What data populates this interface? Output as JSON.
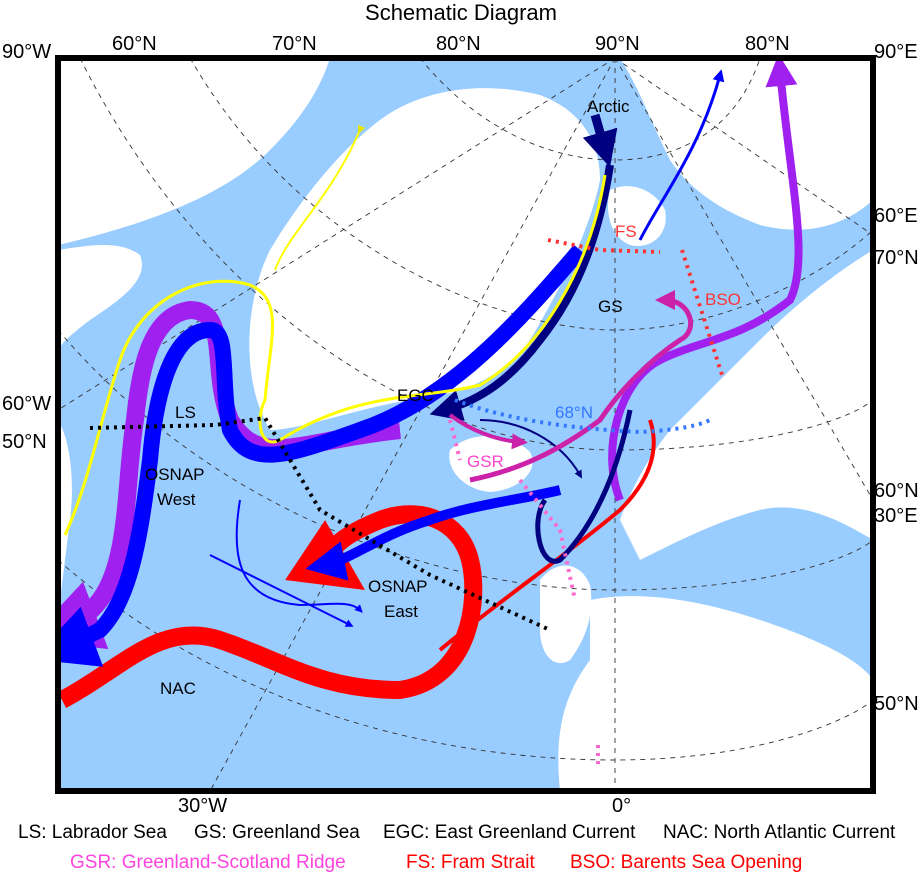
{
  "title": "Schematic Diagram",
  "colors": {
    "ocean": "#99ccff",
    "land": "#ffffff",
    "red": "#ff0000",
    "purple": "#a020f0",
    "blue": "#0000ff",
    "navy": "#000080",
    "yellow": "#ffff00",
    "magenta": "#cc22aa",
    "pink": "#ff66cc",
    "dotted_blue": "#3377ff"
  },
  "coord_labels": {
    "top_left_lon": "90°W",
    "top_60n": "60°N",
    "top_70n": "70°N",
    "top_80n": "80°N",
    "top_90n": "90°N",
    "top_right_80n": "80°N",
    "top_right_lon": "90°E",
    "left_60w": "60°W",
    "left_50n": "50°N",
    "right_60e": "60°E",
    "right_70n": "70°N",
    "right_60n": "60°N",
    "right_30e": "30°E",
    "right_50n": "50°N",
    "bottom_30w": "30°W",
    "bottom_0": "0°"
  },
  "region_labels": {
    "arctic": "Arctic",
    "gs": "GS",
    "egc": "EGC",
    "ls": "LS",
    "osnap_west": "OSNAP West",
    "osnap_east": "OSNAP East",
    "nac": "NAC",
    "gsr": "GSR",
    "fs": "FS",
    "bso": "BSO",
    "lat68": "68°N"
  },
  "legend": {
    "ls": "LS: Labrador Sea",
    "gs": "GS: Greenland Sea",
    "egc": "EGC: East Greenland Current",
    "nac": "NAC: North Atlantic Current",
    "gsr": "GSR: Greenland-Scotland Ridge",
    "fs": "FS: Fram Strait",
    "bso": "BSO: Barents Sea Opening"
  }
}
